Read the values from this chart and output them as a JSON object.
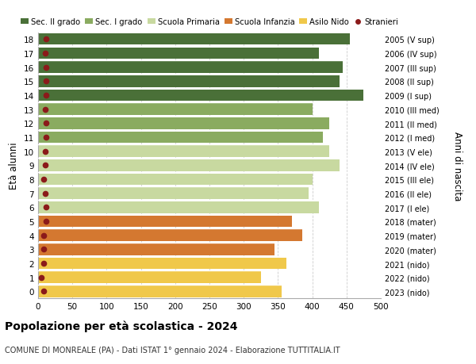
{
  "ages": [
    0,
    1,
    2,
    3,
    4,
    5,
    6,
    7,
    8,
    9,
    10,
    11,
    12,
    13,
    14,
    15,
    16,
    17,
    18
  ],
  "values": [
    355,
    325,
    362,
    345,
    385,
    370,
    410,
    395,
    400,
    440,
    425,
    415,
    425,
    400,
    475,
    440,
    445,
    410,
    455
  ],
  "right_labels": [
    "2023 (nido)",
    "2022 (nido)",
    "2021 (nido)",
    "2020 (mater)",
    "2019 (mater)",
    "2018 (mater)",
    "2017 (I ele)",
    "2016 (II ele)",
    "2015 (III ele)",
    "2014 (IV ele)",
    "2013 (V ele)",
    "2012 (I med)",
    "2011 (II med)",
    "2010 (III med)",
    "2009 (I sup)",
    "2008 (II sup)",
    "2007 (III sup)",
    "2006 (IV sup)",
    "2005 (V sup)"
  ],
  "bar_colors": [
    "#F0C84A",
    "#F0C84A",
    "#F0C84A",
    "#D47830",
    "#D47830",
    "#D47830",
    "#C8D9A0",
    "#C8D9A0",
    "#C8D9A0",
    "#C8D9A0",
    "#C8D9A0",
    "#8AAB60",
    "#8AAB60",
    "#8AAB60",
    "#4A7038",
    "#4A7038",
    "#4A7038",
    "#4A7038",
    "#4A7038"
  ],
  "stranieri_color": "#8B1A1A",
  "stranieri_values": [
    8,
    5,
    8,
    8,
    8,
    12,
    12,
    10,
    8,
    10,
    10,
    12,
    12,
    10,
    12,
    12,
    12,
    10,
    12
  ],
  "xlim": [
    0,
    500
  ],
  "xticks": [
    0,
    50,
    100,
    150,
    200,
    250,
    300,
    350,
    400,
    450,
    500
  ],
  "ylabel": "Età alunni",
  "right_ylabel": "Anni di nascita",
  "title": "Popolazione per età scolastica - 2024",
  "subtitle": "COMUNE DI MONREALE (PA) - Dati ISTAT 1° gennaio 2024 - Elaborazione TUTTITALIA.IT",
  "legend_labels": [
    "Sec. II grado",
    "Sec. I grado",
    "Scuola Primaria",
    "Scuola Infanzia",
    "Asilo Nido",
    "Stranieri"
  ],
  "legend_colors": [
    "#4A7038",
    "#8AAB60",
    "#C8D9A0",
    "#D47830",
    "#F0C84A",
    "#8B1A1A"
  ],
  "bg_color": "#FFFFFF",
  "grid_color": "#CCCCCC",
  "bar_height": 0.82
}
